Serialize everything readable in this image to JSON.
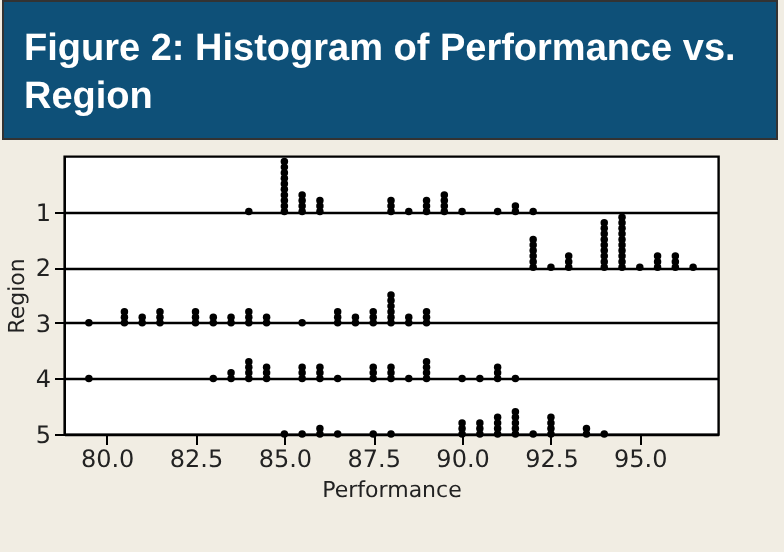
{
  "chart_data": {
    "type": "scatter",
    "title": "Figure 2: Histogram of Performance vs. Region",
    "xlabel": "Performance",
    "ylabel": "Region",
    "xlim": [
      78.8,
      97.2
    ],
    "xticks": [
      {
        "value": 80,
        "label": "80.0"
      },
      {
        "value": 82.5,
        "label": "82.5"
      },
      {
        "value": 85,
        "label": "85.0"
      },
      {
        "value": 87.5,
        "label": "87.5"
      },
      {
        "value": 90,
        "label": "90.0"
      },
      {
        "value": 92.5,
        "label": "92.5"
      },
      {
        "value": 95,
        "label": "95.0"
      }
    ],
    "ylim": [
      5,
      0
    ],
    "yticks": [
      1,
      2,
      3,
      4,
      5
    ],
    "grid": "y",
    "marker": "circle",
    "series": [
      {
        "color": "#000000",
        "x": [
          84,
          85,
          85,
          85,
          85,
          85,
          85,
          85,
          85,
          85,
          85,
          85.5,
          85.5,
          85.5,
          85.5,
          86,
          86,
          86,
          88,
          88,
          88,
          88.5,
          89,
          89,
          89,
          89.5,
          89.5,
          89.5,
          89.5,
          90,
          91,
          91.5,
          91.5,
          92
        ],
        "values": [
          1,
          1,
          0.9,
          0.8,
          0.7,
          0.6,
          0.5,
          0.4,
          0.3,
          0.2,
          0.1,
          1,
          0.9,
          0.8,
          0.7,
          1,
          0.9,
          0.8,
          1,
          0.9,
          0.8,
          1,
          1,
          0.9,
          0.8,
          1,
          0.9,
          0.8,
          0.7,
          1,
          1,
          1,
          0.9,
          1
        ]
      },
      {
        "color": "#000000",
        "x": [
          92,
          92,
          92,
          92,
          92,
          92,
          92.5,
          93,
          93,
          93,
          94,
          94,
          94,
          94,
          94,
          94,
          94,
          94,
          94,
          94.5,
          94.5,
          94.5,
          94.5,
          94.5,
          94.5,
          94.5,
          94.5,
          94.5,
          94.5,
          95,
          95.5,
          95.5,
          95.5,
          96,
          96,
          96,
          96.5
        ],
        "values": [
          2,
          1.9,
          1.8,
          1.7,
          1.6,
          1.5,
          2,
          2,
          1.9,
          1.8,
          2,
          1.9,
          1.8,
          1.7,
          1.6,
          1.5,
          1.4,
          1.3,
          1.2,
          2,
          1.9,
          1.8,
          1.7,
          1.6,
          1.5,
          1.4,
          1.3,
          1.2,
          1.1,
          2,
          2,
          1.9,
          1.8,
          2,
          1.9,
          1.8,
          2
        ]
      },
      {
        "color": "#000000",
        "x": [
          79.5,
          80.5,
          80.5,
          80.5,
          81,
          81,
          81.5,
          81.5,
          81.5,
          82.5,
          82.5,
          82.5,
          83,
          83,
          83.5,
          83.5,
          84,
          84,
          84,
          84.5,
          84.5,
          85.5,
          86.5,
          86.5,
          86.5,
          87,
          87,
          87.5,
          87.5,
          87.5,
          88,
          88,
          88,
          88,
          88,
          88,
          88.5,
          88.5,
          89,
          89,
          89
        ],
        "values": [
          3,
          3,
          2.9,
          2.8,
          3,
          2.9,
          3,
          2.9,
          2.8,
          3,
          2.9,
          2.8,
          3,
          2.9,
          3,
          2.9,
          3,
          2.9,
          2.8,
          3,
          2.9,
          3,
          3,
          2.9,
          2.8,
          3,
          2.9,
          3,
          2.9,
          2.8,
          3,
          2.9,
          2.8,
          2.7,
          2.6,
          2.5,
          3,
          2.9,
          3,
          2.9,
          2.8
        ]
      },
      {
        "color": "#000000",
        "x": [
          79.5,
          83,
          83.5,
          83.5,
          84,
          84,
          84,
          84,
          84.5,
          84.5,
          84.5,
          85.5,
          85.5,
          85.5,
          86,
          86,
          86,
          86.5,
          87.5,
          87.5,
          87.5,
          88,
          88,
          88,
          88.5,
          89,
          89,
          89,
          89,
          90,
          90.5,
          91,
          91,
          91,
          91.5
        ],
        "values": [
          4,
          4,
          4,
          3.9,
          4,
          3.9,
          3.8,
          3.7,
          4,
          3.9,
          3.8,
          4,
          3.9,
          3.8,
          4,
          3.9,
          3.8,
          4,
          4,
          3.9,
          3.8,
          4,
          3.9,
          3.8,
          4,
          4,
          3.9,
          3.8,
          3.7,
          4,
          4,
          4,
          3.9,
          3.8,
          4
        ]
      },
      {
        "color": "#000000",
        "x": [
          85,
          85.5,
          86,
          86,
          86.5,
          87.5,
          88,
          90,
          90,
          90,
          90.5,
          90.5,
          90.5,
          91,
          91,
          91,
          91,
          91.5,
          91.5,
          91.5,
          91.5,
          91.5,
          92,
          92.5,
          92.5,
          92.5,
          92.5,
          93.5,
          93.5,
          94
        ],
        "values": [
          5,
          5,
          5,
          4.9,
          5,
          5,
          5,
          5,
          4.9,
          4.8,
          5,
          4.9,
          4.8,
          5,
          4.9,
          4.8,
          4.7,
          5,
          4.9,
          4.8,
          4.7,
          4.6,
          5,
          5,
          4.9,
          4.8,
          4.7,
          5,
          4.9,
          5
        ]
      }
    ]
  }
}
